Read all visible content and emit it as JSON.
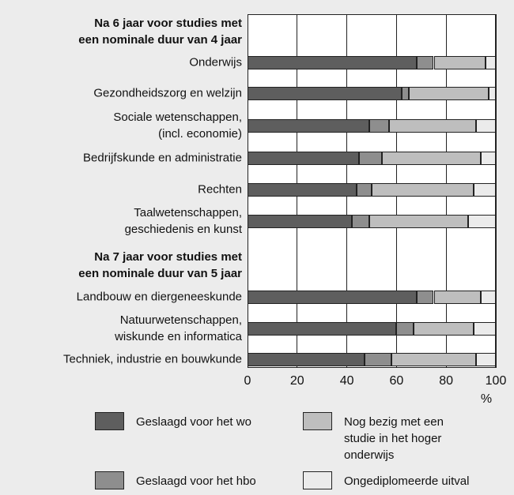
{
  "chart_data": {
    "type": "stacked_barh",
    "groups": [
      {
        "title": "Na 6 jaar voor studies met\neen nominale duur van 4 jaar",
        "categories": [
          "Onderwijs",
          "Gezondheidszorg en welzijn",
          "Sociale wetenschappen,\n(incl. economie)",
          "Bedrijfskunde en administratie",
          "Rechten",
          "Taalwetenschappen,\ngeschiedenis en kunst"
        ]
      },
      {
        "title": "Na 7 jaar voor studies met\neen nominale duur van 5 jaar",
        "categories": [
          "Landbouw en diergeneeskunde",
          "Natuurwetenschappen,\nwiskunde en informatica",
          "Techniek, industrie en bouwkunde"
        ]
      }
    ],
    "series": [
      {
        "name": "Geslaagd voor het wo",
        "color": "#5e5e5e",
        "values": [
          68,
          62,
          49,
          45,
          44,
          42,
          68,
          60,
          47
        ]
      },
      {
        "name": "Geslaagd voor het hbo",
        "color": "#8e8e8e",
        "values": [
          7,
          3,
          8,
          9,
          6,
          7,
          7,
          7,
          11
        ]
      },
      {
        "name": "Nog bezig met een\nstudie in het hoger\nonderwijs",
        "color": "#bebebe",
        "values": [
          21,
          32,
          35,
          40,
          41,
          40,
          19,
          24,
          34
        ]
      },
      {
        "name": "Ongediplomeerde uitval",
        "color": "#ebebeb",
        "values": [
          4,
          3,
          8,
          6,
          9,
          11,
          6,
          9,
          8
        ]
      }
    ],
    "xlim": [
      0,
      100
    ],
    "xticks": [
      0,
      20,
      40,
      60,
      80,
      100
    ],
    "xlabel": "%",
    "grid": true
  }
}
